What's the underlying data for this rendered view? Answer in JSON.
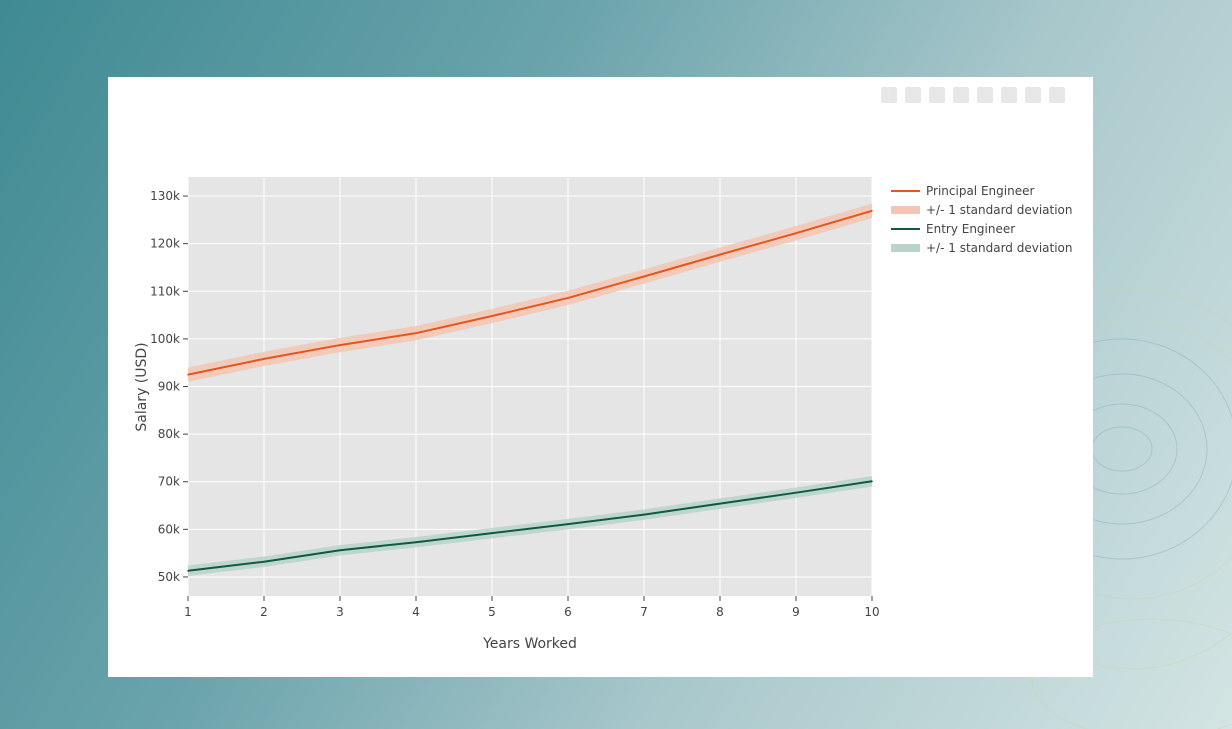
{
  "chart_data": {
    "type": "line",
    "xlabel": "Years Worked",
    "ylabel": "Salary (USD)",
    "xlim": [
      1,
      10
    ],
    "ylim": [
      46000,
      134000
    ],
    "x": [
      1,
      2,
      3,
      4,
      5,
      6,
      7,
      8,
      9,
      10
    ],
    "x_ticks": [
      1,
      2,
      3,
      4,
      5,
      6,
      7,
      8,
      9,
      10
    ],
    "y_ticks": [
      50000,
      60000,
      70000,
      80000,
      90000,
      100000,
      110000,
      120000,
      130000
    ],
    "y_tick_labels": [
      "50k",
      "60k",
      "70k",
      "80k",
      "90k",
      "100k",
      "110k",
      "120k",
      "130k"
    ],
    "grid": true,
    "legend_position": "right",
    "series": [
      {
        "name": "Principal Engineer",
        "band_name": "+/- 1 standard deviation",
        "color": "#e4561e",
        "band_color": "#f3c5b3",
        "values": [
          92500,
          95800,
          98700,
          101200,
          104800,
          108600,
          113100,
          117700,
          122200,
          126900
        ],
        "band_half_width": 1500
      },
      {
        "name": "Entry Engineer",
        "band_name": "+/- 1 standard deviation",
        "color": "#0f5a45",
        "band_color": "#b9d4ca",
        "values": [
          51300,
          53200,
          55600,
          57300,
          59200,
          61100,
          63100,
          65400,
          67700,
          70100
        ],
        "band_half_width": 1100
      }
    ]
  }
}
